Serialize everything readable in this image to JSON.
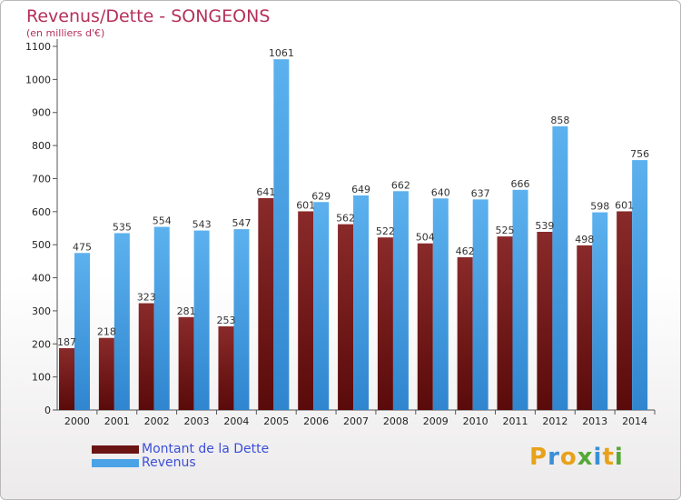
{
  "header": {
    "title": "Revenus/Dette - SONGEONS",
    "subtitle": "(en milliers d'€)"
  },
  "chart_data": {
    "type": "bar",
    "title": "Revenus/Dette - SONGEONS",
    "ylim": [
      0,
      1100
    ],
    "yticks": [
      0,
      100,
      200,
      300,
      400,
      500,
      600,
      700,
      800,
      900,
      1000,
      1100
    ],
    "grid": false,
    "legend_position": "bottom-left",
    "categories": [
      "2000",
      "2001",
      "2002",
      "2003",
      "2004",
      "2005",
      "2006",
      "2007",
      "2008",
      "2009",
      "2010",
      "2011",
      "2012",
      "2013",
      "2014"
    ],
    "series": [
      {
        "name": "Montant de la Dette",
        "color": "#6b1414",
        "values": [
          187,
          218,
          323,
          281,
          253,
          641,
          601,
          562,
          522,
          504,
          462,
          525,
          539,
          498,
          601
        ],
        "labels": [
          "187",
          "218",
          "323",
          "281",
          "253",
          "641",
          "601",
          "562",
          "522",
          "504",
          "462",
          "525",
          "539",
          "498",
          "601"
        ]
      },
      {
        "name": "Revenus",
        "color": "#4aa3e6",
        "values": [
          475,
          535,
          554,
          543,
          547,
          1061,
          629,
          649,
          662,
          640,
          637,
          666,
          858,
          598,
          756
        ],
        "labels": [
          "475",
          "535",
          "554",
          "543",
          "547",
          "1061",
          "629",
          "649",
          "662",
          "640",
          "637",
          "666",
          "858",
          "598",
          "756"
        ]
      }
    ]
  },
  "legend": {
    "debt_label": "Montant de la Dette",
    "revenue_label": "Revenus",
    "debt_color": "#6b1414",
    "revenue_color": "#4aa3e6"
  },
  "logo": {
    "text": "Proxiti"
  }
}
